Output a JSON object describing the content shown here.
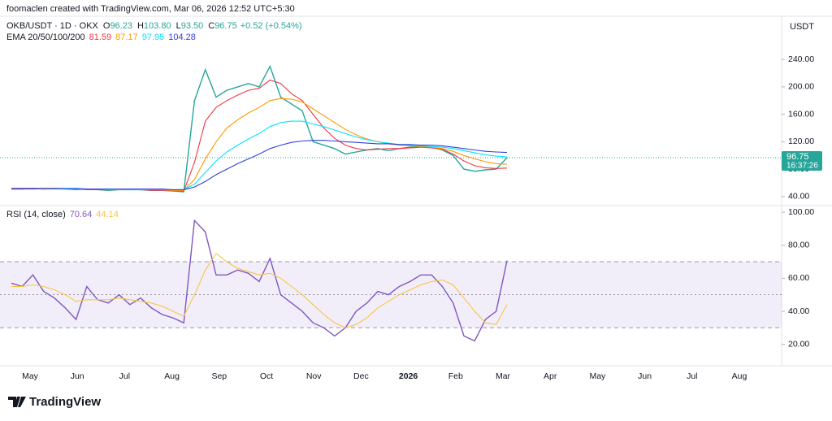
{
  "header": {
    "credit": "foomaclen created with TradingView.com, Mar 06, 2026 12:52 UTC+5:30",
    "logo": "TradingView"
  },
  "time_axis": [
    "May",
    "Jun",
    "Jul",
    "Aug",
    "Sep",
    "Oct",
    "Nov",
    "Dec",
    "2026",
    "Feb",
    "Mar",
    "Apr",
    "May",
    "Jun",
    "Jul",
    "Aug"
  ],
  "chart_data": [
    {
      "type": "line",
      "ohlc": [
        {
          "key": "O",
          "value": "96.23"
        },
        {
          "key": "H",
          "value": "103.80"
        },
        {
          "key": "L",
          "value": "93.50"
        },
        {
          "key": "C"
        }
      ],
      "change": "+0.52 (+0.54%)",
      "indicator": "EMA 20/50/100/200",
      "currency": "USDT",
      "countdown": "16:37:26",
      "ylim": [
        28,
        303
      ],
      "yticks": [
        {
          "value": 40,
          "label": "40.00"
        },
        {
          "value": 80,
          "label": "80.00"
        },
        {
          "value": 120,
          "label": "120.00"
        },
        {
          "value": 160,
          "label": "160.00"
        },
        {
          "value": 200,
          "label": "200.00"
        },
        {
          "value": 240,
          "label": "240.00"
        }
      ],
      "series": [
        {
          "name": "OKB/USDT · 1D · OKX",
          "color": "#26a69a",
          "values": [
            51,
            51,
            52,
            51,
            52,
            51,
            50,
            51,
            50,
            49,
            50,
            50,
            50,
            49,
            49,
            48,
            47,
            180,
            225,
            185,
            195,
            200,
            205,
            200,
            230,
            185,
            175,
            165,
            120,
            115,
            110,
            102,
            105,
            108,
            110,
            107,
            110,
            112,
            113,
            112,
            108,
            100,
            80,
            77,
            79,
            80,
            96.75
          ]
        },
        {
          "color": "#f23645",
          "values": [
            51,
            51,
            51,
            51,
            51,
            51,
            51,
            50,
            50,
            50,
            50,
            50,
            50,
            49,
            49,
            49,
            48,
            90,
            150,
            170,
            180,
            188,
            195,
            198,
            210,
            205,
            190,
            180,
            160,
            140,
            125,
            115,
            110,
            108,
            109,
            110,
            110,
            111,
            112,
            111,
            109,
            102,
            92,
            85,
            82,
            81,
            81.59
          ]
        },
        {
          "color": "#ff9800",
          "values": [
            52,
            52,
            52,
            51,
            51,
            51,
            51,
            51,
            51,
            50,
            50,
            50,
            50,
            50,
            50,
            49,
            49,
            65,
            95,
            120,
            140,
            152,
            162,
            170,
            180,
            183,
            182,
            178,
            168,
            158,
            148,
            138,
            130,
            124,
            120,
            117,
            115,
            114,
            113,
            112,
            110,
            106,
            100,
            95,
            91,
            88,
            87.17
          ]
        },
        {
          "color": "#00e5ff",
          "values": [
            52,
            52,
            52,
            52,
            52,
            51,
            51,
            51,
            51,
            51,
            51,
            50,
            50,
            50,
            50,
            50,
            50,
            58,
            75,
            92,
            105,
            115,
            124,
            132,
            142,
            148,
            150,
            150,
            146,
            142,
            137,
            132,
            127,
            123,
            120,
            118,
            116,
            115,
            114,
            113,
            112,
            110,
            107,
            104,
            101,
            99,
            97.95
          ]
        },
        {
          "color": "#2f3fe0",
          "values": [
            52,
            52,
            52,
            52,
            52,
            52,
            52,
            51,
            51,
            51,
            51,
            51,
            51,
            51,
            51,
            50,
            50,
            54,
            62,
            72,
            80,
            88,
            95,
            102,
            110,
            115,
            119,
            121,
            122,
            122,
            121,
            120,
            119,
            118,
            117,
            117,
            116,
            116,
            115,
            115,
            114,
            112,
            110,
            108,
            106,
            105,
            104.28
          ]
        }
      ]
    },
    {
      "type": "line",
      "indicator": "RSI (14, close)",
      "ylim": [
        7,
        103
      ],
      "yticks": [
        {
          "value": 20,
          "label": "20.00"
        },
        {
          "value": 40,
          "label": "40.00"
        },
        {
          "value": 60,
          "label": "60.00"
        },
        {
          "value": 80,
          "label": "80.00"
        },
        {
          "value": 100,
          "label": "100.00"
        }
      ],
      "levels": [
        70,
        50,
        30
      ],
      "band_color": "#7e57c2",
      "series": [
        {
          "color": "#7e57c2",
          "values": [
            57,
            55,
            62,
            52,
            48,
            42,
            35,
            55,
            47,
            45,
            50,
            44,
            48,
            42,
            38,
            36,
            33,
            95,
            88,
            62,
            62,
            65,
            63,
            58,
            72,
            50,
            45,
            40,
            33,
            30,
            25,
            30,
            40,
            45,
            52,
            50,
            55,
            58,
            62,
            62,
            55,
            45,
            25,
            22,
            35,
            40,
            70.64
          ]
        },
        {
          "color": "#f7c544",
          "values": [
            55,
            55,
            56,
            55,
            53,
            50,
            46,
            47,
            47,
            47,
            48,
            47,
            46,
            45,
            43,
            40,
            37,
            50,
            65,
            75,
            70,
            66,
            64,
            62,
            63,
            60,
            55,
            50,
            44,
            38,
            33,
            30,
            32,
            36,
            42,
            46,
            50,
            53,
            56,
            58,
            59,
            56,
            48,
            40,
            33,
            32,
            44.14
          ]
        }
      ]
    }
  ]
}
